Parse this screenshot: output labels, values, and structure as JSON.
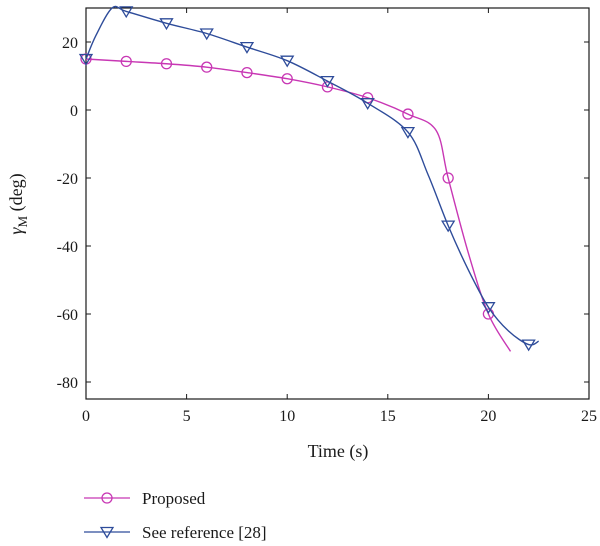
{
  "chart_data": {
    "type": "line",
    "title": "",
    "xlabel": "Time (s)",
    "ylabel": {
      "symbol": "γ",
      "subscript": "M",
      "unit": " (deg)"
    },
    "xlim": [
      0,
      25
    ],
    "ylim": [
      -85,
      30
    ],
    "xticks": [
      0,
      5,
      10,
      15,
      20,
      25
    ],
    "yticks": [
      -80,
      -60,
      -40,
      -20,
      0,
      20
    ],
    "grid": false,
    "legend_position": "bottom-left, below the plot",
    "series": [
      {
        "name": "Proposed",
        "color": "#c837b4",
        "marker": "circle",
        "x": [
          0,
          2,
          4,
          6,
          8,
          10,
          12,
          14,
          16,
          17.4,
          18,
          19,
          20,
          21.1
        ],
        "y": [
          15,
          14.3,
          13.6,
          12.6,
          11,
          9.2,
          6.8,
          3.6,
          -1.2,
          -6,
          -20,
          -42,
          -60,
          -71
        ],
        "marker_x": [
          0,
          2,
          4,
          6,
          8,
          10,
          12,
          14,
          16,
          18,
          20
        ],
        "marker_y": [
          15,
          14.3,
          13.6,
          12.6,
          11,
          9.2,
          6.8,
          3.6,
          -1.2,
          -20,
          -60
        ]
      },
      {
        "name": "See reference [28]",
        "color": "#2e4c9a",
        "marker": "triangle-down",
        "x": [
          0,
          0.5,
          1.3,
          2,
          4,
          6,
          8,
          10,
          12,
          14,
          16,
          17,
          18,
          19,
          20,
          21,
          22,
          22.5
        ],
        "y": [
          15,
          22,
          30,
          29,
          25.5,
          22.5,
          18.5,
          14.5,
          8.5,
          2,
          -6.5,
          -19,
          -34,
          -47,
          -58,
          -65,
          -69,
          -68
        ],
        "marker_x": [
          0,
          2,
          4,
          6,
          8,
          10,
          12,
          14,
          16,
          18,
          20,
          22
        ],
        "marker_y": [
          15,
          29,
          25.5,
          22.5,
          18.5,
          14.5,
          8.5,
          2,
          -6.5,
          -34,
          -58,
          -69
        ]
      }
    ]
  }
}
